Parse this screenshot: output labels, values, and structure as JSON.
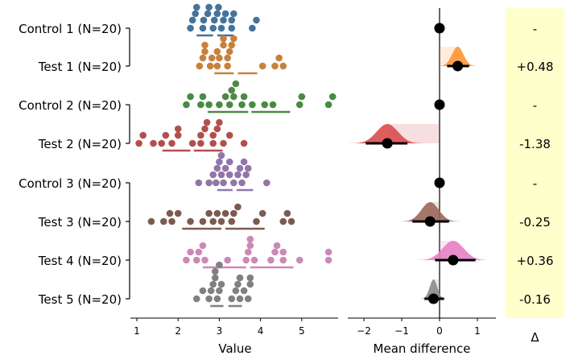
{
  "chart_data": [
    {
      "type": "scatter",
      "subtype": "swarm",
      "title": "",
      "xlabel": "Value",
      "ylabel": "",
      "xlim": [
        0.95,
        5.85
      ],
      "xticks": [
        1,
        2,
        3,
        4,
        5
      ],
      "grid": false,
      "groups": [
        {
          "label": "Control 1 (N=20)",
          "color": "#44739b",
          "values": [
            2.35,
            2.45,
            2.6,
            2.75,
            2.85,
            2.95,
            3.05,
            3.1,
            3.3,
            3.35,
            2.3,
            2.42,
            2.62,
            2.72,
            2.88,
            2.98,
            3.15,
            3.3,
            3.8,
            3.9
          ],
          "gap_stats": {
            "left": [
              2.45,
              2.85
            ],
            "right": [
              2.95,
              3.35
            ]
          }
        },
        {
          "label": "Test 1 (N=20)",
          "color": "#c7813c",
          "values": [
            2.65,
            2.95,
            3.2,
            3.3,
            2.52,
            2.65,
            2.78,
            2.95,
            3.1,
            3.25,
            3.35,
            4.05,
            4.35,
            4.55,
            2.82,
            3.1,
            3.2,
            2.6,
            4.45,
            3.0
          ],
          "gap_stats": {
            "left": [
              2.88,
              3.35
            ],
            "right": [
              3.45,
              3.92
            ]
          }
        },
        {
          "label": "Control 2 (N=20)",
          "color": "#4a8a44",
          "values": [
            2.6,
            3.25,
            3.35,
            3.55,
            2.2,
            2.55,
            2.75,
            3.0,
            3.15,
            3.4,
            3.6,
            3.8,
            4.1,
            4.3,
            4.95,
            5.65,
            5.0,
            5.75,
            3.3,
            2.3
          ],
          "gap_stats": {
            "left": [
              2.72,
              3.7
            ],
            "right": [
              3.78,
              4.72
            ]
          }
        },
        {
          "label": "Test 2 (N=20)",
          "color": "#b24f4e",
          "values": [
            1.15,
            1.7,
            2.0,
            2.55,
            2.65,
            2.85,
            1.05,
            1.4,
            1.6,
            2.0,
            2.35,
            2.55,
            2.7,
            2.85,
            3.0,
            3.25,
            3.6,
            1.85,
            2.95,
            3.1
          ],
          "gap_stats": {
            "left": [
              1.62,
              2.3
            ],
            "right": [
              2.38,
              3.08
            ]
          }
        },
        {
          "label": "Control 3 (N=20)",
          "color": "#9176a9",
          "values": [
            2.95,
            3.25,
            3.55,
            3.7,
            2.5,
            2.75,
            2.92,
            3.05,
            3.15,
            3.35,
            3.45,
            3.65,
            4.15,
            3.0,
            3.1,
            3.25,
            3.5,
            2.85,
            3.05,
            3.6
          ],
          "gap_stats": {
            "left": [
              2.95,
              3.32
            ],
            "right": [
              3.42,
              3.82
            ]
          }
        },
        {
          "label": "Test 3 (N=20)",
          "color": "#7c5a50",
          "values": [
            2.85,
            3.15,
            3.35,
            4.75,
            1.35,
            1.65,
            1.85,
            2.0,
            2.3,
            2.6,
            2.75,
            3.05,
            3.3,
            3.45,
            3.9,
            4.05,
            4.55,
            4.65,
            1.8,
            2.95
          ],
          "gap_stats": {
            "left": [
              2.1,
              3.05
            ],
            "right": [
              3.15,
              4.1
            ]
          }
        },
        {
          "label": "Test 4 (N=20)",
          "color": "#cc88b6",
          "values": [
            2.3,
            2.5,
            2.65,
            3.75,
            3.85,
            4.35,
            4.55,
            5.65,
            2.2,
            2.6,
            3.2,
            3.65,
            3.75,
            4.25,
            4.55,
            4.95,
            5.65,
            3.7,
            4.4,
            2.45
          ],
          "gap_stats": {
            "left": [
              2.6,
              3.65
            ],
            "right": [
              3.75,
              4.8
            ]
          }
        },
        {
          "label": "Test 5 (N=20)",
          "color": "#808080",
          "values": [
            2.85,
            3.0,
            3.45,
            3.75,
            2.45,
            2.75,
            2.95,
            3.05,
            3.4,
            3.75,
            2.9,
            3.5,
            2.8,
            3.6,
            3.0,
            3.3,
            2.6,
            3.5,
            3.7,
            2.9
          ],
          "gap_stats": {
            "left": [
              2.78,
              3.1
            ],
            "right": [
              3.22,
              3.55
            ]
          }
        }
      ],
      "brackets": [
        [
          0,
          1
        ],
        [
          2,
          3
        ],
        [
          4,
          7
        ]
      ]
    },
    {
      "type": "forest",
      "title": "",
      "xlabel": "Mean difference",
      "xlim": [
        -2.4,
        1.5
      ],
      "xticks": [
        -2,
        -1,
        0,
        1
      ],
      "tick_labels": [
        "−2",
        "−1",
        "0",
        "1"
      ],
      "rows": [
        {
          "label": "Control 1",
          "reference": true,
          "mean": 0
        },
        {
          "label": "Test 1",
          "mean": 0.48,
          "ci": [
            0.2,
            0.78
          ],
          "sd": 0.15,
          "color": "#ff9533"
        },
        {
          "label": "Control 2",
          "reference": true,
          "mean": 0
        },
        {
          "label": "Test 2",
          "mean": -1.38,
          "ci": [
            -1.95,
            -0.85
          ],
          "sd": 0.28,
          "color": "#d94c4e"
        },
        {
          "label": "Control 3",
          "reference": true,
          "mean": 0
        },
        {
          "label": "Test 3",
          "mean": -0.25,
          "ci": [
            -0.72,
            0.25
          ],
          "sd": 0.23,
          "color": "#9b665a"
        },
        {
          "label": "Test 4",
          "mean": 0.36,
          "ci": [
            -0.12,
            0.95
          ],
          "sd": 0.28,
          "color": "#e67fc6"
        },
        {
          "label": "Test 5",
          "mean": -0.16,
          "ci": [
            -0.4,
            0.12
          ],
          "sd": 0.1,
          "color": "#8a8a8a"
        }
      ]
    },
    {
      "type": "table",
      "header": "Δ",
      "background": "#ffffcc",
      "values": [
        "-",
        "+0.48",
        "-",
        "-1.38",
        "-",
        "-0.25",
        "+0.36",
        "-0.16"
      ]
    }
  ]
}
